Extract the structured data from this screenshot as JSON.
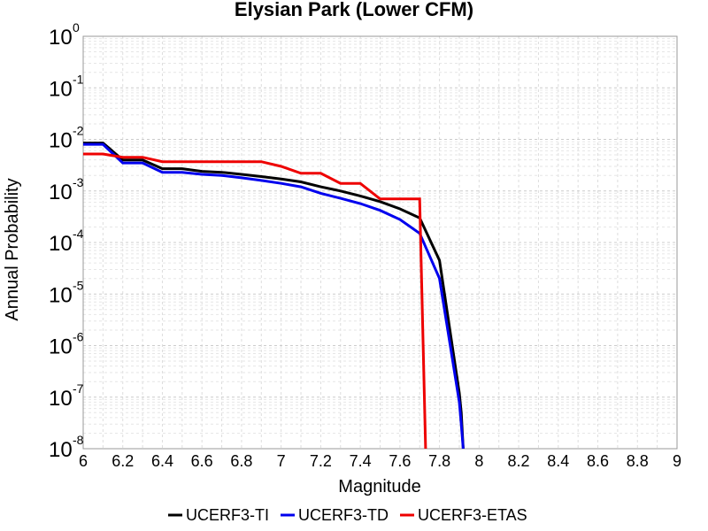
{
  "chart_data": {
    "type": "line",
    "title": "Elysian Park (Lower CFM)",
    "xlabel": "Magnitude",
    "ylabel": "Annual Probability",
    "xlim": [
      6,
      9
    ],
    "ylim": [
      1e-08,
      1
    ],
    "yscale": "log",
    "grid": true,
    "legend_position": "bottom",
    "x_ticks": [
      "6",
      "6.2",
      "6.4",
      "6.6",
      "6.8",
      "7",
      "7.2",
      "7.4",
      "7.6",
      "7.8",
      "8",
      "8.2",
      "8.4",
      "8.6",
      "8.8",
      "9"
    ],
    "y_ticks": [
      {
        "base": "10",
        "exp": "0",
        "value": 1
      },
      {
        "base": "10",
        "exp": "-1",
        "value": 0.1
      },
      {
        "base": "10",
        "exp": "-2",
        "value": 0.01
      },
      {
        "base": "10",
        "exp": "-3",
        "value": 0.001
      },
      {
        "base": "10",
        "exp": "-4",
        "value": 0.0001
      },
      {
        "base": "10",
        "exp": "-5",
        "value": 1e-05
      },
      {
        "base": "10",
        "exp": "-6",
        "value": 1e-06
      },
      {
        "base": "10",
        "exp": "-7",
        "value": 1e-07
      },
      {
        "base": "10",
        "exp": "-8",
        "value": 1e-08
      }
    ],
    "series": [
      {
        "name": "UCERF3-TI",
        "color": "#000000",
        "x": [
          6.0,
          6.1,
          6.2,
          6.3,
          6.4,
          6.5,
          6.6,
          6.7,
          6.8,
          6.9,
          7.0,
          7.1,
          7.2,
          7.3,
          7.4,
          7.5,
          7.6,
          7.7,
          7.8,
          7.9,
          7.91,
          7.92
        ],
        "y": [
          0.0085,
          0.0085,
          0.004,
          0.004,
          0.0027,
          0.0027,
          0.0024,
          0.0023,
          0.0021,
          0.0019,
          0.0017,
          0.0015,
          0.0012,
          0.001,
          0.0008,
          0.00062,
          0.00045,
          0.0003,
          4.5e-05,
          1.2e-07,
          5e-08,
          1e-08
        ]
      },
      {
        "name": "UCERF3-TD",
        "color": "#0000ee",
        "x": [
          6.0,
          6.1,
          6.2,
          6.3,
          6.4,
          6.5,
          6.6,
          6.7,
          6.8,
          6.9,
          7.0,
          7.1,
          7.2,
          7.3,
          7.4,
          7.5,
          7.6,
          7.7,
          7.8,
          7.9,
          7.91,
          7.92
        ],
        "y": [
          0.008,
          0.008,
          0.0035,
          0.0035,
          0.0023,
          0.0023,
          0.0021,
          0.002,
          0.0018,
          0.0016,
          0.0014,
          0.0012,
          0.0009,
          0.00072,
          0.00057,
          0.00042,
          0.00028,
          0.00015,
          2e-05,
          8e-08,
          3e-08,
          1e-08
        ]
      },
      {
        "name": "UCERF3-ETAS",
        "color": "#ee0000",
        "x": [
          6.0,
          6.1,
          6.2,
          6.3,
          6.4,
          6.5,
          6.6,
          6.7,
          6.8,
          6.9,
          7.0,
          7.1,
          7.2,
          7.3,
          7.4,
          7.5,
          7.6,
          7.7,
          7.73
        ],
        "y": [
          0.0052,
          0.0052,
          0.0045,
          0.0045,
          0.0037,
          0.0037,
          0.0037,
          0.0037,
          0.0037,
          0.0037,
          0.003,
          0.0022,
          0.0022,
          0.0014,
          0.0014,
          0.0007,
          0.0007,
          0.0007,
          1e-08
        ]
      }
    ]
  }
}
